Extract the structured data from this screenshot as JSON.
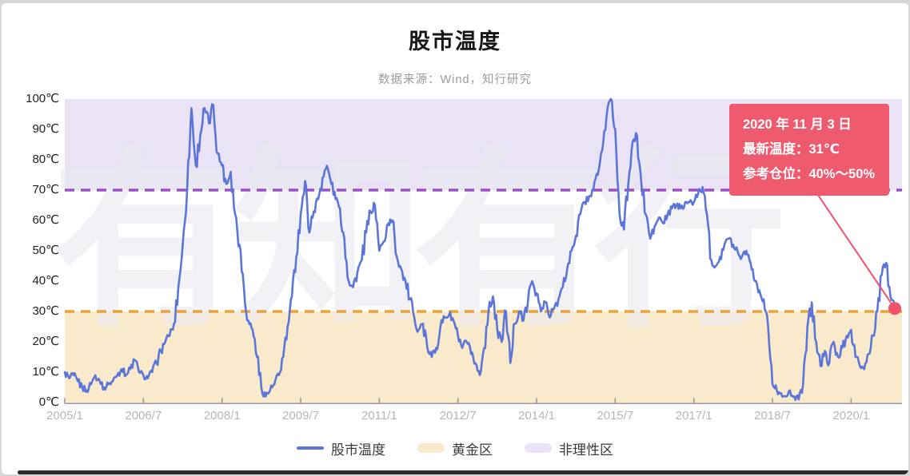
{
  "header": {
    "title": "股市温度",
    "subtitle": "数据来源：Wind，知行研究"
  },
  "watermark": "有知有行",
  "tooltip": {
    "date": "2020 年 11 月 3 日",
    "temperature": "最新温度：31℃",
    "position": "参考仓位：40%～50%",
    "bg": "#ee5a6e"
  },
  "legend": [
    {
      "key": "market-temperature",
      "label": "股市温度",
      "type": "line",
      "color": "#5b76d8"
    },
    {
      "key": "gold-zone",
      "label": "黄金区",
      "type": "box",
      "color": "#f8e9cd"
    },
    {
      "key": "irrational-zone",
      "label": "非理性区",
      "type": "box",
      "color": "#e9e3f5"
    }
  ],
  "chart_data": {
    "type": "line",
    "title": "股市温度",
    "x_tick_labels": [
      "2005/1",
      "2006/7",
      "2008/1",
      "2009/7",
      "2011/1",
      "2012/7",
      "2014/1",
      "2015/7",
      "2017/1",
      "2018/7",
      "2020/1"
    ],
    "x_tick_month_index": [
      0,
      18,
      36,
      54,
      72,
      90,
      108,
      126,
      144,
      162,
      180
    ],
    "y_ticks": [
      "100℃",
      "90℃",
      "80℃",
      "70℃",
      "60℃",
      "50℃",
      "40℃",
      "30℃",
      "20℃",
      "10℃",
      "0℃"
    ],
    "ylim": [
      0,
      100
    ],
    "grid": false,
    "legend_position": "bottom",
    "bands": [
      {
        "key": "irrational-zone",
        "label": "非理性区",
        "from": 70,
        "to": 100,
        "color": "#e9e3f5"
      },
      {
        "key": "gold-zone",
        "label": "黄金区",
        "from": 0,
        "to": 30,
        "color": "#faeacc"
      }
    ],
    "thresholds": [
      {
        "key": "irrational-threshold",
        "value": 70,
        "color": "#9b50c8"
      },
      {
        "key": "gold-threshold",
        "value": 30,
        "color": "#e8a33c"
      }
    ],
    "series": [
      {
        "name": "股市温度",
        "color": "#5b76d8",
        "start": "2005/1",
        "interval": "month",
        "values": [
          10,
          8,
          9,
          7,
          5,
          4,
          6,
          9,
          7,
          5,
          6,
          7,
          9,
          11,
          9,
          11,
          14,
          10,
          9,
          8,
          10,
          13,
          17,
          20,
          22,
          26,
          38,
          52,
          70,
          97,
          78,
          88,
          97,
          92,
          98,
          82,
          78,
          72,
          76,
          62,
          52,
          38,
          27,
          24,
          15,
          5,
          2,
          4,
          6,
          9,
          15,
          25,
          35,
          48,
          62,
          73,
          56,
          63,
          67,
          74,
          78,
          72,
          67,
          64,
          54,
          40,
          38,
          43,
          47,
          56,
          63,
          65,
          50,
          53,
          59,
          60,
          48,
          44,
          40,
          34,
          28,
          24,
          26,
          18,
          15,
          18,
          25,
          28,
          29,
          27,
          22,
          18,
          20,
          16,
          13,
          9,
          18,
          30,
          35,
          24,
          20,
          30,
          13,
          26,
          30,
          27,
          33,
          40,
          36,
          30,
          33,
          28,
          31,
          34,
          38,
          44,
          50,
          55,
          62,
          66,
          68,
          70,
          75,
          83,
          94,
          100,
          90,
          62,
          57,
          72,
          86,
          88,
          72,
          62,
          54,
          58,
          61,
          59,
          62,
          64,
          65,
          64,
          66,
          66,
          66,
          69,
          71,
          62,
          47,
          45,
          48,
          52,
          54,
          52,
          50,
          48,
          50,
          46,
          40,
          37,
          34,
          25,
          6,
          4,
          3,
          2,
          4,
          2,
          1,
          6,
          25,
          33,
          20,
          12,
          17,
          13,
          20,
          15,
          18,
          22,
          24,
          15,
          12,
          11,
          16,
          22,
          30,
          42,
          46,
          35,
          31
        ]
      }
    ],
    "last_point": {
      "date": "2020/11/3",
      "value": 31,
      "color": "#f1516b"
    }
  }
}
